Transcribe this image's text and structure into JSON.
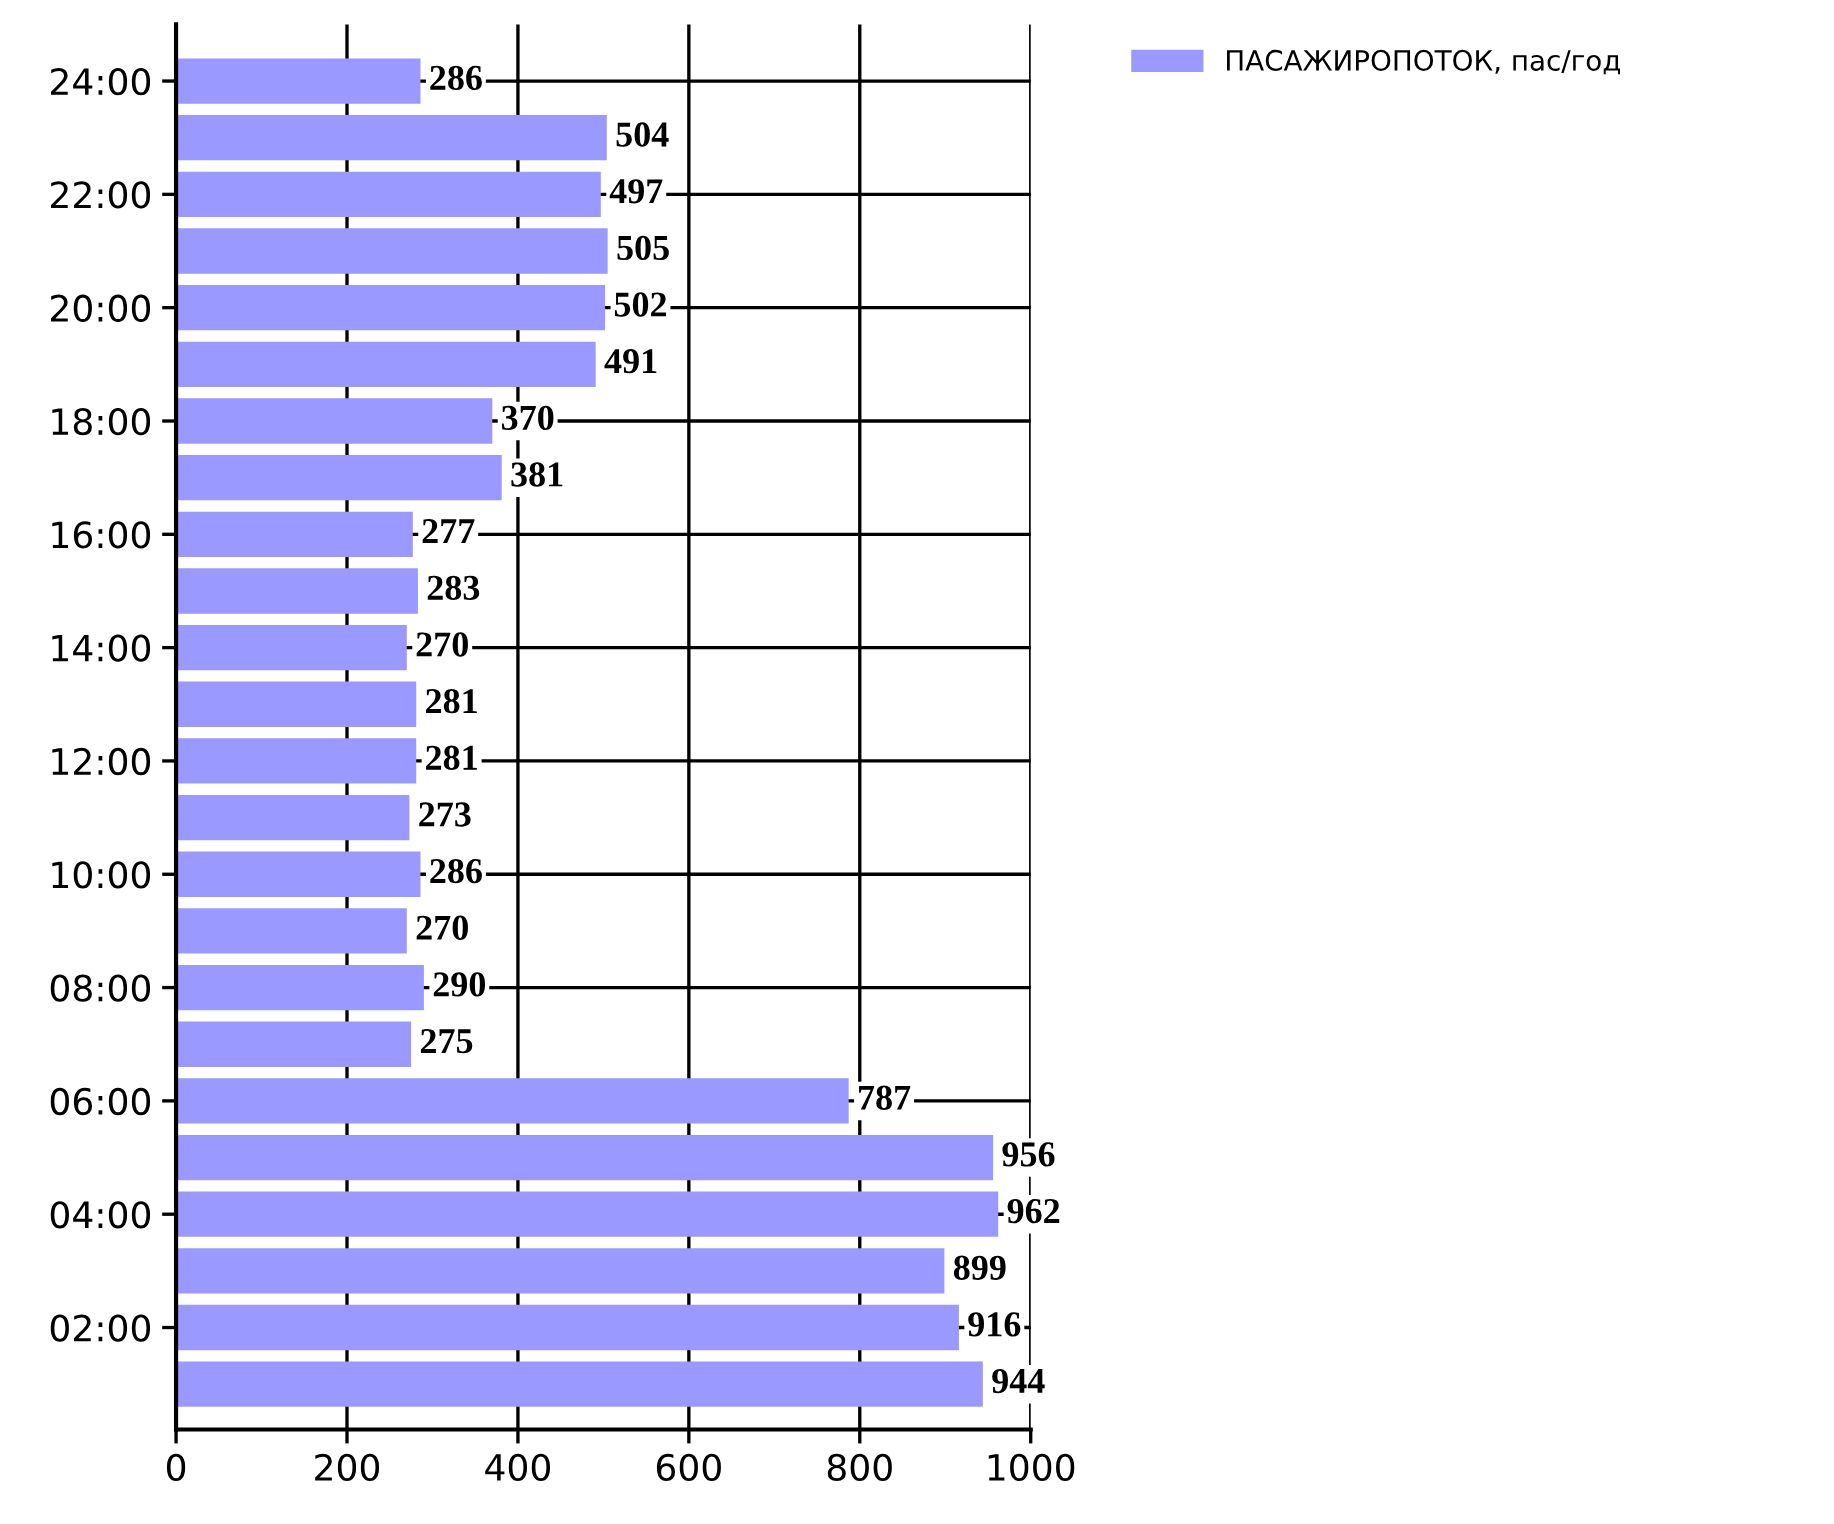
{
  "chart_data": {
    "type": "bar",
    "orientation": "horizontal",
    "categories": [
      "24:00",
      null,
      "22:00",
      null,
      "20:00",
      null,
      "18:00",
      null,
      "16:00",
      null,
      "14:00",
      null,
      "12:00",
      null,
      "10:00",
      null,
      "08:00",
      null,
      "06:00",
      null,
      "04:00",
      null,
      "02:00",
      null
    ],
    "series": [
      {
        "name": "ПАСАЖИРОПОТОК, пас/год",
        "color": "#9999ff",
        "values": [
          286,
          504,
          497,
          505,
          502,
          491,
          370,
          381,
          277,
          283,
          270,
          281,
          281,
          273,
          286,
          270,
          290,
          275,
          787,
          956,
          962,
          899,
          916,
          944
        ]
      }
    ],
    "xlim": [
      0,
      1000
    ],
    "xticks": [
      0,
      200,
      400,
      600,
      800,
      1000
    ],
    "grid": true,
    "legend": "top right",
    "data_labels": true
  }
}
